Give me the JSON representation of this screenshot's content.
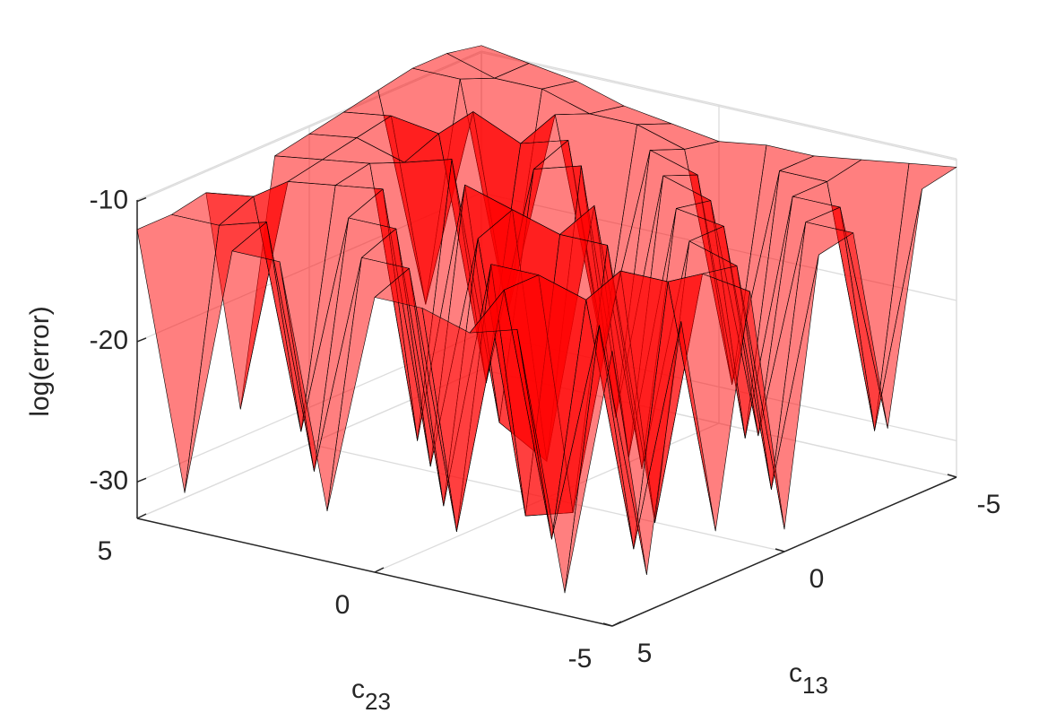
{
  "chart_data": {
    "type": "surface3d",
    "xlabel": "c",
    "xlabel_sub": "13",
    "ylabel": "c",
    "ylabel_sub": "23",
    "zlabel": "log(error)",
    "x": [
      -5,
      -4,
      -3,
      -2,
      -1,
      0,
      1,
      2,
      3,
      4,
      5
    ],
    "y": [
      -5,
      -4,
      -3,
      -2,
      -1,
      0,
      1,
      2,
      3,
      4,
      5
    ],
    "z": [
      [
        -10.5,
        -11,
        -27,
        -12,
        -12.5,
        -31,
        -13,
        -29,
        -13,
        -30,
        -13
      ],
      [
        -11,
        -29,
        -12,
        -12,
        -30,
        -13,
        -12.5,
        -12,
        -30,
        -13,
        -31
      ],
      [
        -11.5,
        -12,
        -12,
        -28,
        -12,
        -12,
        -31,
        -12,
        -13,
        -29,
        -13
      ],
      [
        -12,
        -12,
        -30,
        -12,
        -11.5,
        -29,
        -12,
        -30,
        -12,
        -12,
        -14
      ],
      [
        -12,
        -28,
        -12,
        -11,
        -30,
        -11,
        -12,
        -31,
        -12,
        -30,
        -13
      ],
      [
        -12.5,
        -12,
        -11,
        -29,
        -10,
        -30,
        -11,
        -12,
        -30,
        -12,
        -13
      ],
      [
        -12,
        -11,
        -26,
        -10,
        -11,
        -28,
        -10,
        -29,
        -11,
        -12,
        -29
      ],
      [
        -11.5,
        -11,
        -10,
        -11,
        -27,
        -10,
        -29,
        -10,
        -11,
        -28,
        -12
      ],
      [
        -10.5,
        -10,
        -25,
        -9.5,
        -10,
        -11,
        -10,
        -10.5,
        -27,
        -11,
        -12
      ],
      [
        -10,
        -10,
        -9,
        -24,
        -9.5,
        -10,
        -10.5,
        -11,
        -11,
        -12,
        -30
      ],
      [
        -9.5,
        -9,
        -9,
        -9.5,
        -10,
        -10.5,
        -11,
        -28,
        -11.5,
        -12,
        -12
      ]
    ],
    "xlim": [
      -5,
      5
    ],
    "xticks": [
      -5,
      0,
      5
    ],
    "ylim": [
      -5,
      5
    ],
    "yticks": [
      -5,
      0,
      5
    ],
    "zlim": [
      -32.6,
      -9.9
    ],
    "zticks": [
      -30,
      -20,
      -10
    ],
    "color": "#ff0000",
    "face_alpha": 0.5,
    "edge_color": "#000000",
    "grid": true
  }
}
